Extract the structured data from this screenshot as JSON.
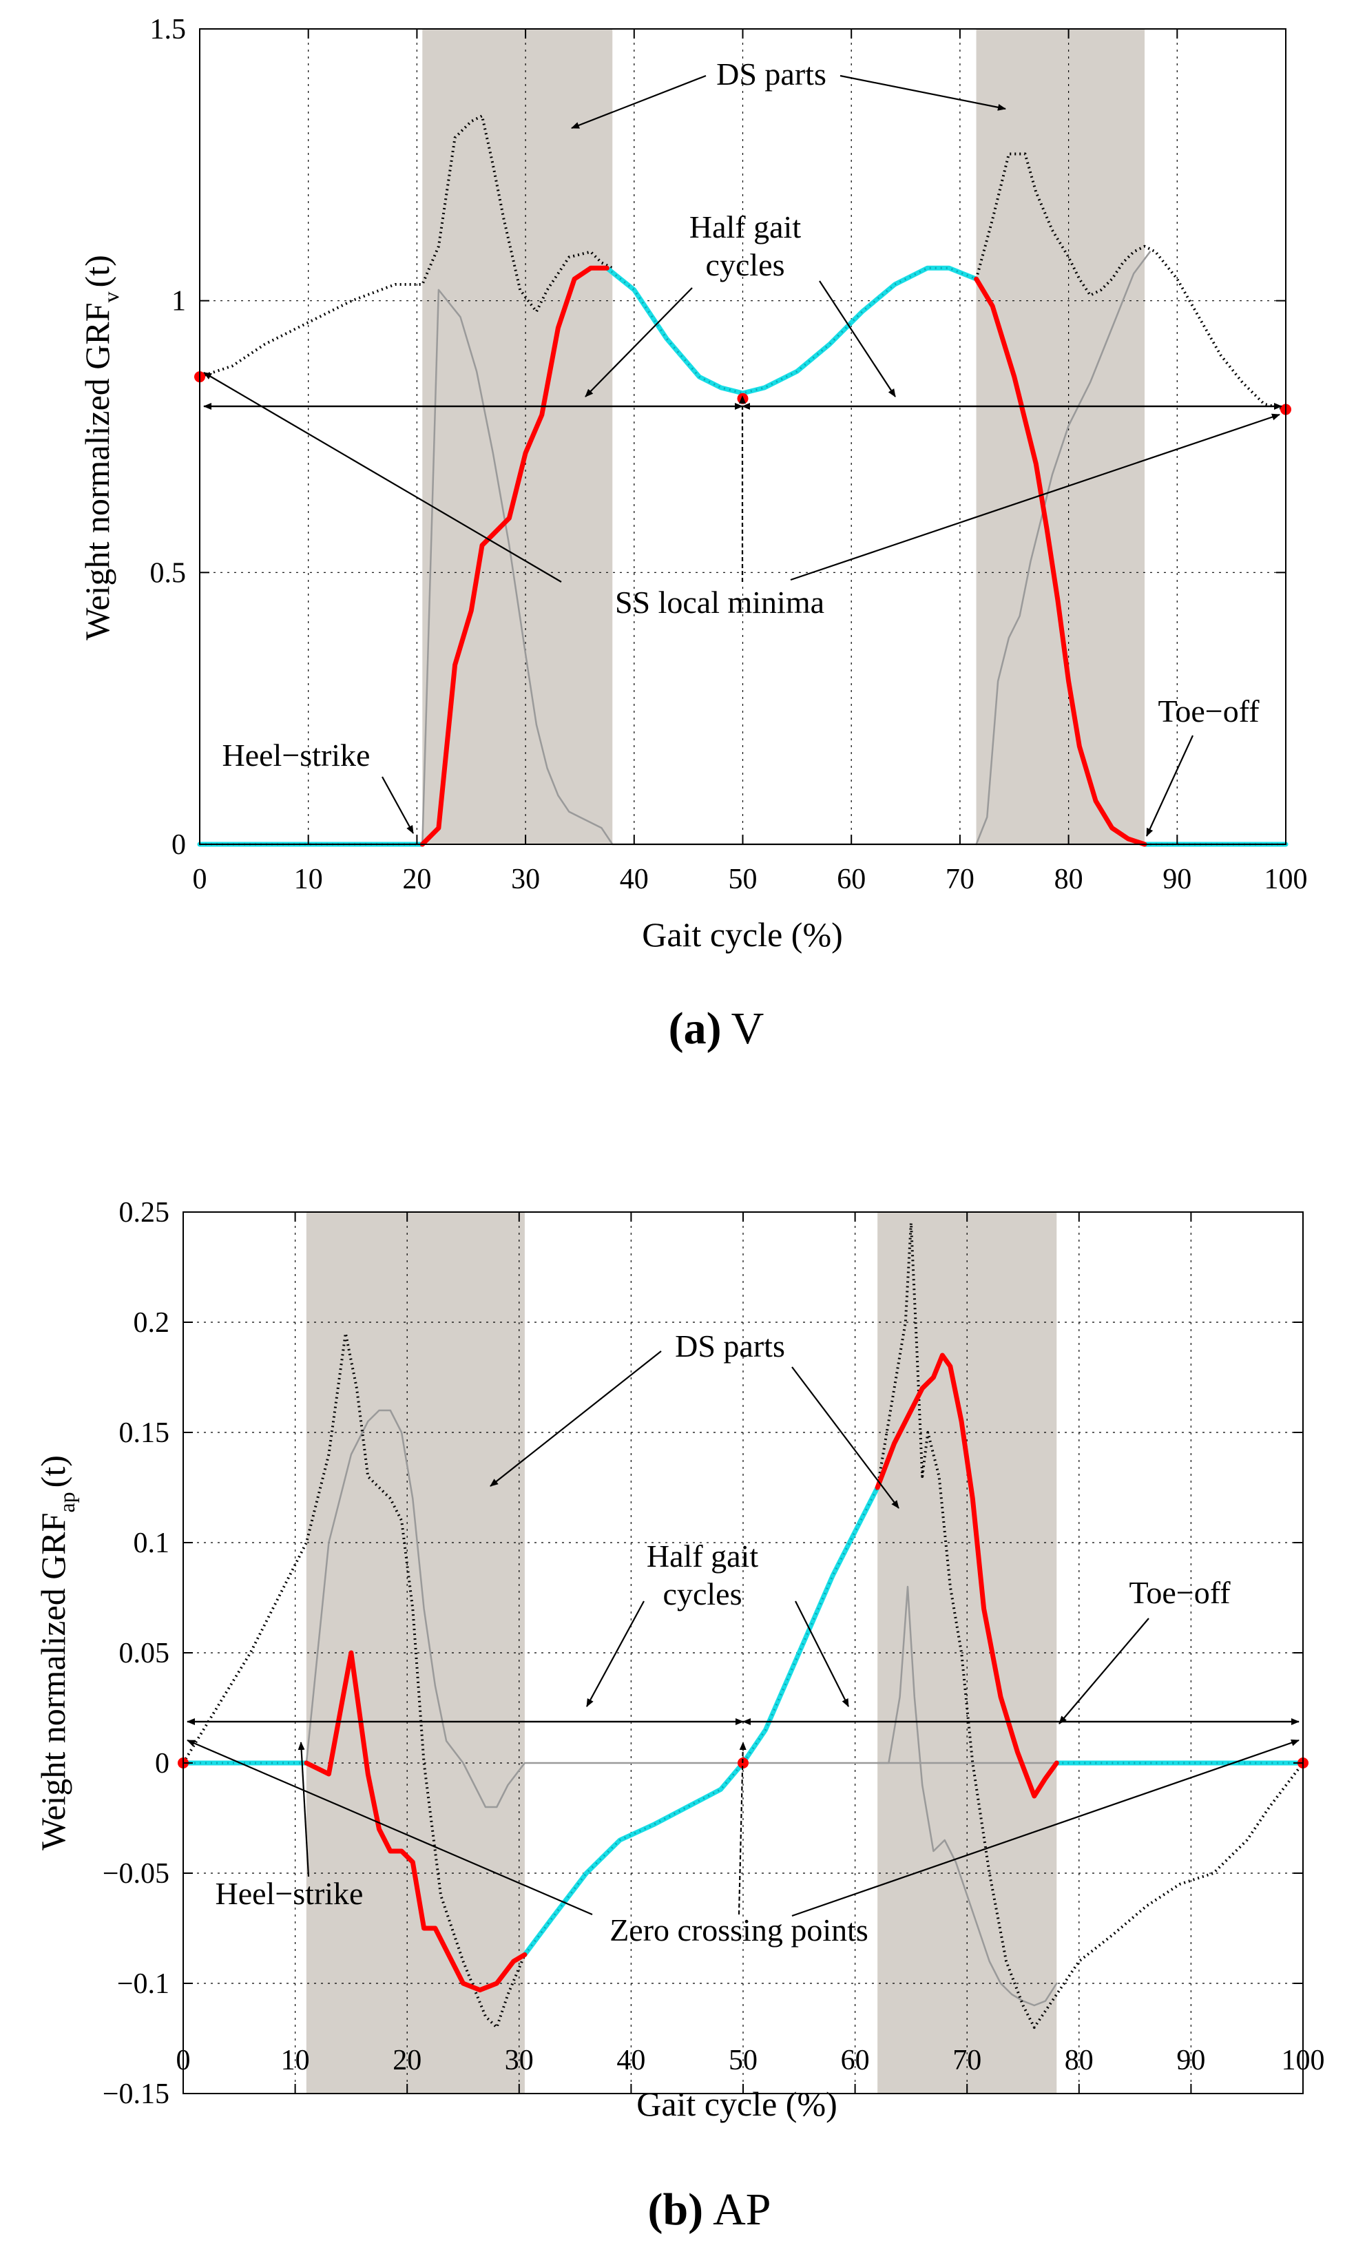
{
  "colors": {
    "red": "#ff0000",
    "cyan": "#18dde6",
    "ds_band": "#d5d0ca",
    "dotted": "#000000",
    "gray": "#9a9a9a",
    "axis": "#000000",
    "grid": "#000000"
  },
  "chart_data": [
    {
      "type": "line",
      "caption": {
        "letter": "(a)",
        "text": "V"
      },
      "xlabel": "Gait cycle (%)",
      "ylabel": "Weight normalized GRF",
      "ylabel_sub": "v",
      "ylabel_suffix": "(t)",
      "xlim": [
        0,
        100
      ],
      "ylim": [
        0,
        1.5
      ],
      "xticks": [
        0,
        10,
        20,
        30,
        40,
        50,
        60,
        70,
        80,
        90,
        100
      ],
      "yticks": [
        0,
        0.5,
        1,
        1.5
      ],
      "ytick_labels": [
        "0",
        "0.5",
        "1",
        "1.5"
      ],
      "grid": true,
      "ds_bands": [
        [
          20.5,
          38
        ],
        [
          71.5,
          87
        ]
      ],
      "series": [
        {
          "name": "cyan-before",
          "style": "cyan",
          "x": [
            0,
            20.5
          ],
          "y": [
            0,
            0
          ]
        },
        {
          "name": "red-rise",
          "style": "red",
          "x": [
            20.5,
            22,
            23.5,
            25,
            26,
            27,
            28.5,
            30,
            31.5,
            33,
            34.5,
            36,
            37.5
          ],
          "y": [
            0,
            0.03,
            0.33,
            0.43,
            0.55,
            0.57,
            0.6,
            0.72,
            0.79,
            0.95,
            1.04,
            1.06,
            1.06
          ]
        },
        {
          "name": "cyan-half-cycles",
          "style": "cyan",
          "x": [
            37.5,
            40,
            43,
            46,
            48,
            50,
            52,
            55,
            58,
            61,
            64,
            67,
            69,
            71.5
          ],
          "y": [
            1.06,
            1.02,
            0.93,
            0.86,
            0.84,
            0.83,
            0.84,
            0.87,
            0.92,
            0.98,
            1.03,
            1.06,
            1.06,
            1.04
          ]
        },
        {
          "name": "red-fall",
          "style": "red",
          "x": [
            71.5,
            73,
            75,
            77,
            78,
            79,
            80,
            81,
            82.5,
            84,
            85.5,
            87
          ],
          "y": [
            1.04,
            0.99,
            0.86,
            0.7,
            0.58,
            0.45,
            0.3,
            0.18,
            0.08,
            0.03,
            0.01,
            0
          ]
        },
        {
          "name": "cyan-after",
          "style": "cyan",
          "x": [
            87,
            100
          ],
          "y": [
            0,
            0
          ]
        },
        {
          "name": "previous-cycle-dotted",
          "style": "dotted",
          "x": [
            0,
            3,
            6,
            10,
            14,
            18,
            20.5,
            22,
            23.5,
            25,
            26,
            27,
            28,
            29.5,
            31,
            32,
            34,
            36,
            37,
            38
          ],
          "y": [
            0.86,
            0.88,
            0.92,
            0.96,
            1.0,
            1.03,
            1.03,
            1.1,
            1.3,
            1.33,
            1.34,
            1.25,
            1.15,
            1.02,
            0.98,
            1.02,
            1.08,
            1.09,
            1.07,
            1.06
          ]
        },
        {
          "name": "next-cycle-dotted",
          "style": "dotted",
          "x": [
            71.5,
            73,
            74.5,
            76,
            77,
            78.5,
            80,
            81,
            82,
            83,
            84,
            85,
            86,
            87,
            88,
            90,
            92,
            94,
            96,
            98,
            100
          ],
          "y": [
            1.04,
            1.15,
            1.27,
            1.27,
            1.2,
            1.13,
            1.08,
            1.04,
            1.01,
            1.02,
            1.04,
            1.07,
            1.09,
            1.1,
            1.09,
            1.04,
            0.97,
            0.9,
            0.85,
            0.81,
            0.8
          ]
        },
        {
          "name": "other-foot-gray-1",
          "style": "gray",
          "x": [
            0,
            20.5,
            22,
            24,
            25.5,
            27,
            28.5,
            30,
            31,
            32,
            33,
            34,
            35,
            36,
            37,
            38,
            39,
            100
          ],
          "y": [
            0,
            0,
            1.02,
            0.97,
            0.87,
            0.72,
            0.55,
            0.35,
            0.22,
            0.14,
            0.09,
            0.06,
            0.05,
            0.04,
            0.03,
            0.0,
            0,
            0
          ]
        },
        {
          "name": "other-foot-gray-2",
          "style": "gray",
          "x": [
            71.5,
            72.5,
            73.5,
            74.5,
            75.5,
            76.5,
            77.5,
            78.5,
            80,
            82,
            84,
            86,
            87.5
          ],
          "y": [
            0,
            0.05,
            0.3,
            0.38,
            0.42,
            0.52,
            0.6,
            0.68,
            0.77,
            0.85,
            0.95,
            1.05,
            1.09
          ]
        }
      ],
      "markers": [
        {
          "x": 0,
          "y": 0.86
        },
        {
          "x": 50,
          "y": 0.82
        },
        {
          "x": 100,
          "y": 0.8
        }
      ],
      "annotations": {
        "ds_parts": "DS parts",
        "half_gait_line1": "Half gait",
        "half_gait_line2": "cycles",
        "ss_local_minima": "SS local minima",
        "heel_strike": "Heel−strike",
        "toe_off": "Toe−off"
      }
    },
    {
      "type": "line",
      "caption": {
        "letter": "(b)",
        "text": "AP"
      },
      "xlabel": "Gait cycle (%)",
      "ylabel": "Weight normalized GRF",
      "ylabel_sub": "ap",
      "ylabel_suffix": "(t)",
      "xlim": [
        0,
        100
      ],
      "ylim": [
        -0.15,
        0.25
      ],
      "xticks": [
        0,
        10,
        20,
        30,
        40,
        50,
        60,
        70,
        80,
        90,
        100
      ],
      "yticks": [
        -0.15,
        -0.1,
        -0.05,
        0,
        0.05,
        0.1,
        0.15,
        0.2,
        0.25
      ],
      "ytick_labels": [
        "−0.15",
        "−0.1",
        "−0.05",
        "0",
        "0.05",
        "0.1",
        "0.15",
        "0.2",
        "0.25"
      ],
      "grid": true,
      "ds_bands": [
        [
          11,
          30.5
        ],
        [
          62,
          78
        ]
      ],
      "series": [
        {
          "name": "cyan-before",
          "style": "cyan",
          "x": [
            0,
            11
          ],
          "y": [
            0,
            0
          ]
        },
        {
          "name": "red-segment-1",
          "style": "red",
          "x": [
            11,
            13,
            15,
            16.5,
            17.5,
            18.5,
            19.5,
            20.5,
            21.5,
            22.5,
            23.5,
            25,
            26.5,
            28,
            29.5,
            30.5
          ],
          "y": [
            0,
            -0.005,
            0.05,
            -0.005,
            -0.03,
            -0.04,
            -0.04,
            -0.045,
            -0.075,
            -0.075,
            -0.085,
            -0.1,
            -0.103,
            -0.1,
            -0.09,
            -0.087
          ]
        },
        {
          "name": "cyan-half-cycles",
          "style": "cyan",
          "x": [
            30.5,
            33,
            36,
            39,
            42,
            45,
            48,
            50,
            52,
            55,
            58,
            61,
            62
          ],
          "y": [
            -0.087,
            -0.07,
            -0.05,
            -0.035,
            -0.028,
            -0.02,
            -0.012,
            0.0,
            0.015,
            0.05,
            0.085,
            0.115,
            0.125
          ]
        },
        {
          "name": "red-segment-2",
          "style": "red",
          "x": [
            62,
            63.5,
            65,
            66,
            67,
            67.8,
            68.5,
            69.5,
            70.5,
            71.5,
            73,
            74.5,
            76,
            77,
            78
          ],
          "y": [
            0.125,
            0.145,
            0.16,
            0.17,
            0.175,
            0.185,
            0.18,
            0.155,
            0.12,
            0.07,
            0.03,
            0.005,
            -0.015,
            -0.007,
            0
          ]
        },
        {
          "name": "cyan-after",
          "style": "cyan",
          "x": [
            78,
            100
          ],
          "y": [
            0,
            0
          ]
        },
        {
          "name": "previous-cycle-dotted",
          "style": "dotted",
          "x": [
            0,
            3,
            6,
            9,
            11,
            13,
            14.5,
            15.5,
            16.5,
            17.5,
            18.5,
            19.5,
            20.5,
            21.5,
            23,
            25,
            27,
            28,
            29,
            30.5
          ],
          "y": [
            0,
            0.025,
            0.05,
            0.08,
            0.1,
            0.14,
            0.195,
            0.17,
            0.13,
            0.125,
            0.12,
            0.11,
            0.07,
            0.0,
            -0.06,
            -0.09,
            -0.115,
            -0.12,
            -0.105,
            -0.087
          ]
        },
        {
          "name": "next-cycle-dotted",
          "style": "dotted",
          "x": [
            62,
            63.5,
            64.5,
            65,
            65.5,
            66,
            66.5,
            67.5,
            68.5,
            69.5,
            70.5,
            72,
            73.5,
            75,
            76,
            78,
            80,
            83,
            86,
            89,
            92,
            95,
            97,
            100
          ],
          "y": [
            0.125,
            0.17,
            0.2,
            0.245,
            0.19,
            0.13,
            0.15,
            0.13,
            0.08,
            0.05,
            0.0,
            -0.05,
            -0.09,
            -0.11,
            -0.12,
            -0.105,
            -0.09,
            -0.078,
            -0.065,
            -0.055,
            -0.05,
            -0.035,
            -0.02,
            0
          ]
        },
        {
          "name": "other-foot-gray-1",
          "style": "gray",
          "x": [
            0,
            11,
            13,
            15,
            16.5,
            17.5,
            18.5,
            19.5,
            20.5,
            21.5,
            22.5,
            23.5,
            25,
            26,
            27,
            28,
            29,
            30.5,
            100
          ],
          "y": [
            0,
            0,
            0.1,
            0.14,
            0.155,
            0.16,
            0.16,
            0.15,
            0.12,
            0.07,
            0.035,
            0.01,
            0.0,
            -0.01,
            -0.02,
            -0.02,
            -0.01,
            0.0,
            0
          ]
        },
        {
          "name": "other-foot-gray-2",
          "style": "gray",
          "x": [
            62,
            63,
            64,
            64.7,
            65.3,
            66,
            67,
            68,
            69,
            70,
            71,
            72,
            73,
            74,
            75,
            76,
            77,
            78
          ],
          "y": [
            0,
            0.0,
            0.03,
            0.08,
            0.03,
            -0.01,
            -0.04,
            -0.035,
            -0.045,
            -0.06,
            -0.075,
            -0.09,
            -0.1,
            -0.105,
            -0.108,
            -0.11,
            -0.108,
            -0.1
          ]
        }
      ],
      "markers": [
        {
          "x": 0,
          "y": 0
        },
        {
          "x": 50,
          "y": 0
        },
        {
          "x": 100,
          "y": 0
        }
      ],
      "annotations": {
        "ds_parts": "DS parts",
        "half_gait_line1": "Half gait",
        "half_gait_line2": "cycles",
        "zero_crossing": "Zero crossing points",
        "heel_strike": "Heel−strike",
        "toe_off": "Toe−off"
      }
    }
  ]
}
